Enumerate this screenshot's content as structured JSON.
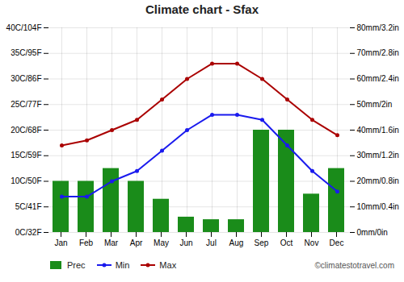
{
  "chart_data": {
    "type": "line",
    "title": "Climate chart - Sfax",
    "categories": [
      "Jan",
      "Feb",
      "Mar",
      "Apr",
      "May",
      "Jun",
      "Jul",
      "Aug",
      "Sep",
      "Oct",
      "Nov",
      "Dec"
    ],
    "series": [
      {
        "name": "Prec",
        "type": "bar",
        "axis": "y2",
        "color": "#1a8c1a",
        "values": [
          20,
          20,
          25,
          20,
          13,
          6,
          5,
          5,
          40,
          40,
          15,
          25
        ]
      },
      {
        "name": "Min",
        "type": "line",
        "color": "#1a1aee",
        "marker": "circle",
        "values": [
          7,
          7,
          10,
          12,
          16,
          20,
          23,
          23,
          22,
          17,
          12,
          8
        ]
      },
      {
        "name": "Max",
        "type": "line",
        "color": "#aa0000",
        "marker": "circle",
        "values": [
          17,
          18,
          20,
          22,
          26,
          30,
          33,
          33,
          30,
          26,
          22,
          19
        ]
      }
    ],
    "ylim": [
      0,
      40
    ],
    "yticks": [
      {
        "value": 0,
        "label": "0C/32F"
      },
      {
        "value": 5,
        "label": "5C/41F"
      },
      {
        "value": 10,
        "label": "10C/50F"
      },
      {
        "value": 15,
        "label": "15C/59F"
      },
      {
        "value": 20,
        "label": "20C/68F"
      },
      {
        "value": 25,
        "label": "25C/77F"
      },
      {
        "value": 30,
        "label": "30C/86F"
      },
      {
        "value": 35,
        "label": "35C/95F"
      },
      {
        "value": 40,
        "label": "40C/104F"
      }
    ],
    "y2lim": [
      0,
      80
    ],
    "y2ticks": [
      {
        "value": 0,
        "label": "0mm/0in"
      },
      {
        "value": 10,
        "label": "10mm/0.4in"
      },
      {
        "value": 20,
        "label": "20mm/0.8in"
      },
      {
        "value": 30,
        "label": "30mm/1.2in"
      },
      {
        "value": 40,
        "label": "40mm/1.6in"
      },
      {
        "value": 50,
        "label": "50mm/2in"
      },
      {
        "value": 60,
        "label": "60mm/2.4in"
      },
      {
        "value": 70,
        "label": "70mm/2.8in"
      },
      {
        "value": 80,
        "label": "80mm/3.2in"
      }
    ],
    "grid": true,
    "legend": "lower left",
    "annotations": [
      "©climatestotravel.com"
    ]
  }
}
